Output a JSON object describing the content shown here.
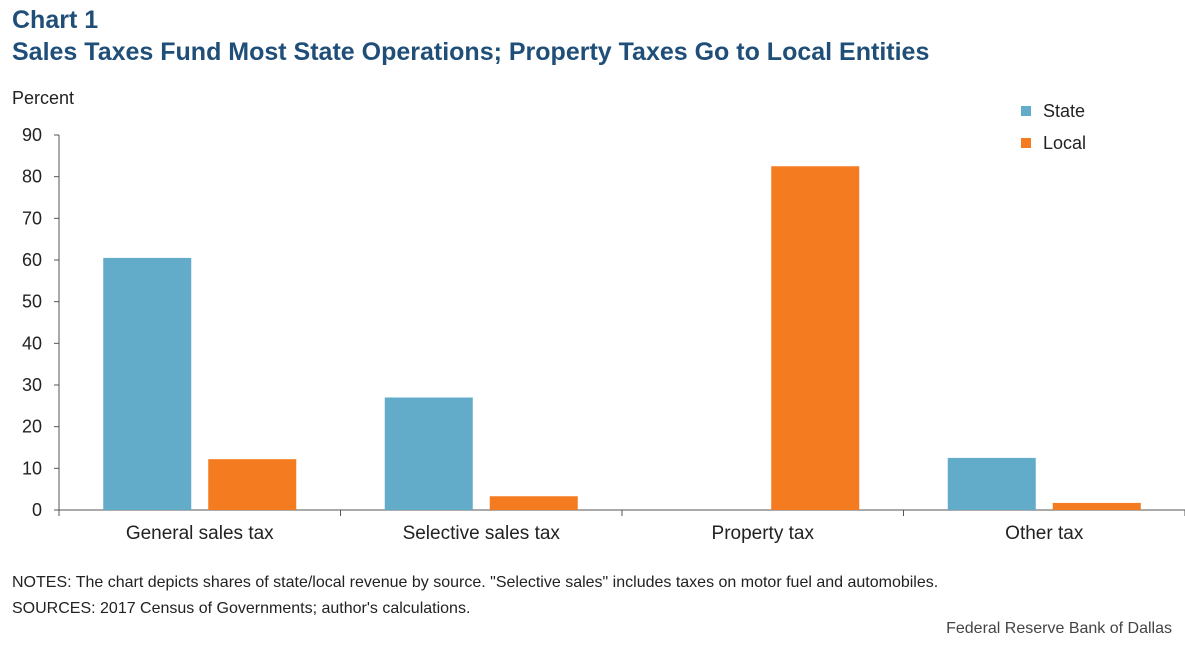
{
  "header": {
    "title_line1": "Chart 1",
    "title_line2": "Sales Taxes Fund Most State Operations; Property Taxes Go to Local Entities"
  },
  "footer": {
    "notes": "NOTES: The chart depicts shares of state/local revenue by source. \"Selective sales\" includes taxes on motor fuel and automobiles.",
    "sources": "SOURCES: 2017 Census of Governments;  author's calculations.",
    "credit": "Federal Reserve Bank of Dallas"
  },
  "chart_data": {
    "type": "bar",
    "ylabel": "Percent",
    "ylim": [
      0,
      90
    ],
    "yticks": [
      0,
      10,
      20,
      30,
      40,
      50,
      60,
      70,
      80,
      90
    ],
    "categories": [
      "General sales tax",
      "Selective sales tax",
      "Property tax",
      "Other tax"
    ],
    "series": [
      {
        "name": "State",
        "color": "#62abc9",
        "values": [
          60.5,
          27,
          0,
          12.5
        ]
      },
      {
        "name": "Local",
        "color": "#f47b20",
        "values": [
          12.2,
          3.3,
          82.5,
          1.7
        ]
      }
    ],
    "legend_position": "top-right",
    "grid": false
  }
}
